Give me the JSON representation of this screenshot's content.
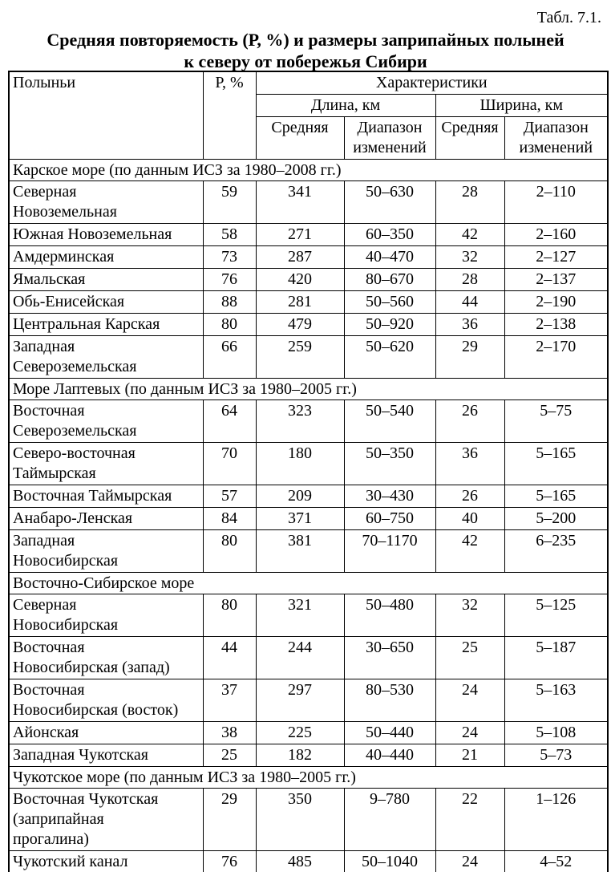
{
  "page": {
    "table_label": "Табл. 7.1.",
    "title_line1": "Средняя повторяемость (Р, %) и размеры заприпайных полыней",
    "title_line2": "к северу от побережья Сибири"
  },
  "table": {
    "header": {
      "col_polynya": "Полыньи",
      "col_p": "Р, %",
      "col_characteristics": "Характеристики",
      "col_length": "Длина, км",
      "col_width": "Ширина, км",
      "col_mean_length": "Средняя",
      "col_range_length": "Диапазон изменений",
      "col_mean_width": "Средняя",
      "col_range_width": "Диапазон изменений"
    },
    "sections": [
      {
        "title": "Карское море (по данным ИСЗ за 1980–2008 гг.)",
        "rows": [
          {
            "name": "Северная\nНовоземельная",
            "p": "59",
            "len_mean": "341",
            "len_range": "50–630",
            "wid_mean": "28",
            "wid_range": "2–110"
          },
          {
            "name": "Южная Новоземельная",
            "p": "58",
            "len_mean": "271",
            "len_range": "60–350",
            "wid_mean": "42",
            "wid_range": "2–160"
          },
          {
            "name": "Амдерминская",
            "p": "73",
            "len_mean": "287",
            "len_range": "40–470",
            "wid_mean": "32",
            "wid_range": "2–127"
          },
          {
            "name": "Ямальская",
            "p": "76",
            "len_mean": "420",
            "len_range": "80–670",
            "wid_mean": "28",
            "wid_range": "2–137"
          },
          {
            "name": "Обь-Енисейская",
            "p": "88",
            "len_mean": "281",
            "len_range": "50–560",
            "wid_mean": "44",
            "wid_range": "2–190"
          },
          {
            "name": "Центральная Карская",
            "p": "80",
            "len_mean": "479",
            "len_range": "50–920",
            "wid_mean": "36",
            "wid_range": "2–138"
          },
          {
            "name": "Западная\nСевероземельская",
            "p": "66",
            "len_mean": "259",
            "len_range": "50–620",
            "wid_mean": "29",
            "wid_range": "2–170"
          }
        ]
      },
      {
        "title": "Море Лаптевых (по данным ИСЗ за 1980–2005 гг.)",
        "rows": [
          {
            "name": "Восточная\nСевероземельская",
            "p": "64",
            "len_mean": "323",
            "len_range": "50–540",
            "wid_mean": "26",
            "wid_range": "5–75"
          },
          {
            "name": "Северо-восточная\nТаймырская",
            "p": "70",
            "len_mean": "180",
            "len_range": "50–350",
            "wid_mean": "36",
            "wid_range": "5–165"
          },
          {
            "name": "Восточная Таймырская",
            "p": "57",
            "len_mean": "209",
            "len_range": "30–430",
            "wid_mean": "26",
            "wid_range": "5–165"
          },
          {
            "name": "Анабаро-Ленская",
            "p": "84",
            "len_mean": "371",
            "len_range": "60–750",
            "wid_mean": "40",
            "wid_range": "5–200"
          },
          {
            "name": "Западная\nНовосибирская",
            "p": "80",
            "len_mean": "381",
            "len_range": "70–1170",
            "wid_mean": "42",
            "wid_range": "6–235"
          }
        ]
      },
      {
        "title": "Восточно-Сибирское море",
        "rows": [
          {
            "name": "Северная\nНовосибирская",
            "p": "80",
            "len_mean": "321",
            "len_range": "50–480",
            "wid_mean": "32",
            "wid_range": "5–125"
          },
          {
            "name": "Восточная\nНовосибирская (запад)",
            "p": "44",
            "len_mean": "244",
            "len_range": "30–650",
            "wid_mean": "25",
            "wid_range": "5–187"
          },
          {
            "name": "Восточная\nНовосибирская (восток)",
            "p": "37",
            "len_mean": "297",
            "len_range": "80–530",
            "wid_mean": "24",
            "wid_range": "5–163"
          },
          {
            "name": "Айонская",
            "p": "38",
            "len_mean": "225",
            "len_range": "50–440",
            "wid_mean": "24",
            "wid_range": "5–108"
          },
          {
            "name": "Западная Чукотская",
            "p": "25",
            "len_mean": "182",
            "len_range": "40–440",
            "wid_mean": "21",
            "wid_range": "5–73"
          }
        ]
      },
      {
        "title": "Чукотское море (по данным ИСЗ за 1980–2005 гг.)",
        "rows": [
          {
            "name": "Восточная Чукотская\n(заприпайная\nпрогалина)",
            "p": "29",
            "len_mean": "350",
            "len_range": "9–780",
            "wid_mean": "22",
            "wid_range": "1–126"
          },
          {
            "name": "Чукотский канал",
            "p": "76",
            "len_mean": "485",
            "len_range": "50–1040",
            "wid_mean": "24",
            "wid_range": "4–52"
          }
        ]
      }
    ]
  }
}
